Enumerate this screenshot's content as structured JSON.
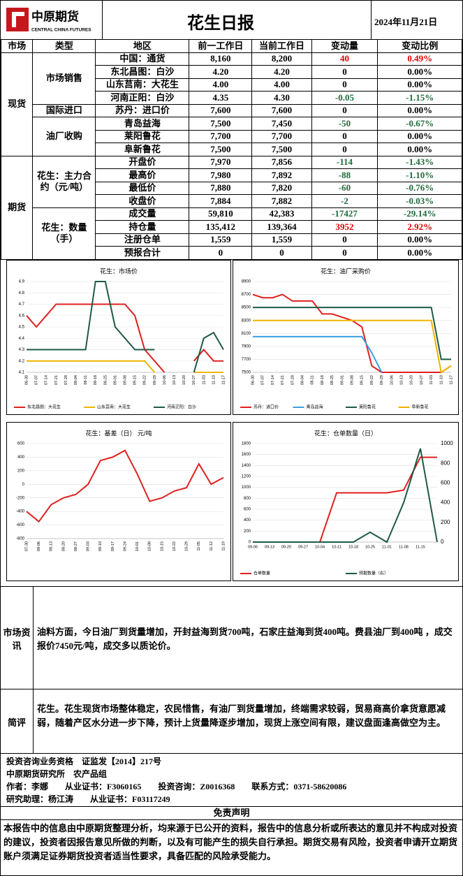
{
  "header": {
    "logo": "中原期货",
    "logo_en": "CENTRAL CHINA FUTURES",
    "title": "花生日报",
    "date": "2024年11月21日"
  },
  "table": {
    "header": [
      "市场",
      "类型",
      "地区",
      "前一工作日",
      "当前工作日",
      "变动量",
      "变动比例"
    ],
    "markets": [
      "现货",
      "期货"
    ],
    "types": [
      "市场销售",
      "国际进口",
      "油厂收购",
      "花生：主力合约（元/吨）",
      "花生：数量（手）"
    ],
    "rows": [
      [
        "中国：通货",
        "8,160",
        "8,200",
        "40",
        "0.49%"
      ],
      [
        "东北昌图：白沙",
        "4.20",
        "4.20",
        "0",
        "0.00%"
      ],
      [
        "山东莒南：大花生",
        "4.00",
        "4.00",
        "0",
        "0.00%"
      ],
      [
        "河南正阳：白沙",
        "4.35",
        "4.30",
        "-0.05",
        "-1.15%"
      ],
      [
        "苏丹：进口价",
        "7,600",
        "7,600",
        "0",
        "0.00%"
      ],
      [
        "青岛益海",
        "7,500",
        "7,450",
        "-50",
        "-0.67%"
      ],
      [
        "莱阳鲁花",
        "7,700",
        "7,700",
        "0",
        "0.00%"
      ],
      [
        "阜新鲁花",
        "7,500",
        "7,500",
        "0",
        "0.00%"
      ],
      [
        "开盘价",
        "7,970",
        "7,856",
        "-114",
        "-1.43%"
      ],
      [
        "最高价",
        "7,980",
        "7,892",
        "-88",
        "-1.10%"
      ],
      [
        "最低价",
        "7,880",
        "7,820",
        "-60",
        "-0.76%"
      ],
      [
        "收盘价",
        "7,884",
        "7,882",
        "-2",
        "-0.03%"
      ],
      [
        "成交量",
        "59,810",
        "42,383",
        "-17427",
        "-29.14%"
      ],
      [
        "持仓量",
        "135,412",
        "139,364",
        "3952",
        "2.92%"
      ],
      [
        "注册仓单",
        "1,559",
        "1,559",
        "0",
        "0.00%"
      ],
      [
        "预报合计",
        "0",
        "0",
        "0",
        "0.00%"
      ]
    ]
  },
  "chart_data": [
    {
      "type": "line",
      "title": "花生：市场价",
      "categories": [
        "06-30",
        "07-07",
        "07-14",
        "07-21",
        "07-28",
        "08-04",
        "08-11",
        "08-18",
        "08-25",
        "09-01",
        "09-08",
        "09-15",
        "09-22",
        "09-29",
        "10-06",
        "10-13",
        "10-20",
        "10-27",
        "11-03",
        "11-10",
        "11-17"
      ],
      "ylim": [
        4.1,
        4.9
      ],
      "yticks": [
        4.1,
        4.2,
        4.3,
        4.4,
        4.5,
        4.6,
        4.7,
        4.8,
        4.9
      ],
      "series": [
        {
          "name": "东北昌图：大花生",
          "color": "#e02020",
          "values": [
            4.6,
            4.5,
            4.6,
            4.7,
            4.7,
            4.7,
            4.7,
            4.7,
            4.7,
            4.7,
            4.7,
            4.6,
            4.3,
            4.2,
            4.1,
            null,
            null,
            4.2,
            4.3,
            4.2,
            4.2
          ]
        },
        {
          "name": "山东莒南：大花生",
          "color": "#f0b400",
          "values": [
            4.2,
            4.2,
            4.2,
            4.2,
            4.2,
            4.2,
            4.2,
            4.2,
            4.2,
            4.2,
            4.2,
            4.2,
            4.2,
            4.1,
            null,
            null,
            null,
            4.1,
            4.1,
            4.1,
            4.1
          ]
        },
        {
          "name": "河南正阳：白沙",
          "color": "#1e5a45",
          "values": [
            4.3,
            4.3,
            4.3,
            4.3,
            4.3,
            4.3,
            4.3,
            4.9,
            4.9,
            4.5,
            4.4,
            4.3,
            4.3,
            4.3,
            null,
            null,
            null,
            4.1,
            4.4,
            4.45,
            4.3
          ]
        }
      ]
    },
    {
      "type": "line",
      "title": "花生：油厂采购价",
      "categories": [
        "06-30",
        "07-07",
        "07-14",
        "07-21",
        "07-28",
        "08-04",
        "08-11",
        "08-18",
        "08-25",
        "09-01",
        "09-08",
        "09-15",
        "09-22",
        "09-29",
        "10-06",
        "10-13",
        "10-20",
        "10-27",
        "11-03",
        "11-10",
        "11-17"
      ],
      "ylim": [
        7500,
        8900
      ],
      "yticks": [
        7500,
        7700,
        7900,
        8100,
        8300,
        8500,
        8700,
        8900
      ],
      "series": [
        {
          "name": "苏丹：进口价",
          "color": "#e02020",
          "values": [
            8700,
            8650,
            8650,
            8700,
            8600,
            8600,
            8600,
            8400,
            8400,
            8350,
            8300,
            8200,
            7600,
            7500,
            7500,
            7500,
            7500,
            7500,
            7500,
            7500,
            7600
          ]
        },
        {
          "name": "青岛益海",
          "color": "#3aa0e0",
          "values": [
            8050,
            8050,
            8050,
            8050,
            8050,
            8050,
            8050,
            8050,
            8050,
            8050,
            8050,
            8050,
            7800,
            7500,
            null,
            null,
            null,
            null,
            null,
            null,
            null
          ]
        },
        {
          "name": "莱阳鲁花",
          "color": "#1e5a45",
          "values": [
            8500,
            8500,
            8500,
            8500,
            8500,
            8500,
            8500,
            8500,
            8500,
            8500,
            8500,
            8500,
            8500,
            8500,
            8500,
            8500,
            8500,
            8500,
            8500,
            7700,
            7700
          ]
        },
        {
          "name": "阜新鲁花",
          "color": "#f0b400",
          "values": [
            8300,
            8300,
            8300,
            8300,
            8300,
            8300,
            8300,
            8300,
            8300,
            8300,
            8300,
            8300,
            8300,
            8300,
            8300,
            8300,
            8300,
            8300,
            8300,
            7500,
            7600
          ]
        }
      ]
    },
    {
      "type": "line",
      "title": "花生：基差（日） 元/吨",
      "categories": [
        "07-30",
        "08-06",
        "08-13",
        "08-20",
        "08-27",
        "09-03",
        "09-10",
        "09-17",
        "09-24",
        "10-01",
        "10-08",
        "10-15",
        "10-22",
        "10-29",
        "11-05",
        "11-12",
        "11-19"
      ],
      "ylim": [
        -800,
        600
      ],
      "yticks": [
        -800,
        -600,
        -400,
        -200,
        0,
        200,
        400,
        600
      ],
      "series": [
        {
          "name": "基差",
          "color": "#e02020",
          "values": [
            -400,
            -550,
            -300,
            -200,
            -150,
            0,
            350,
            400,
            500,
            150,
            -250,
            -200,
            -100,
            -50,
            300,
            0,
            100
          ]
        }
      ]
    },
    {
      "type": "line",
      "title": "花生：仓单数量（日）",
      "categories": [
        "09-06",
        "09-13",
        "09-20",
        "09-27",
        "10-04",
        "10-11",
        "10-18",
        "10-25",
        "11-01",
        "11-08",
        "11-15",
        null
      ],
      "ylim": [
        0,
        1800
      ],
      "yticks": [
        0,
        200,
        400,
        600,
        800,
        1000,
        1200,
        1400,
        1600,
        1800
      ],
      "y2lim": [
        0,
        1000
      ],
      "y2ticks": [
        0,
        200,
        400,
        600,
        800,
        1000
      ],
      "series": [
        {
          "name": "仓单数量",
          "color": "#e02020",
          "values": [
            0,
            0,
            0,
            0,
            0,
            900,
            900,
            900,
            900,
            950,
            1550,
            1550
          ]
        },
        {
          "name": "预报数量（右）",
          "color": "#1e5a45",
          "axis": "y2",
          "values": [
            0,
            0,
            0,
            0,
            0,
            0,
            0,
            100,
            0,
            400,
            950,
            0
          ]
        }
      ]
    }
  ],
  "sections": [
    {
      "label": "市场资讯",
      "text": "油料方面，今日油厂到货量增加，开封益海到货700吨，石家庄益海到货400吨。费县油厂到400吨 ，成交报价7450元/吨，成交多以质论价。"
    },
    {
      "label": "简评",
      "text": "花生。花生现货市场整体稳定，农民惜售，有油厂到货量增加，终端需求较弱，贸易商高价拿货意愿减弱，随着产区水分进一步下降，预计上货量降逐步增加，现货上涨空间有限，建议盘面逢高做空为主。"
    }
  ],
  "footer": {
    "lines": [
      "投资咨询业务资格　证监发【2014】217号",
      "中原期货研究所　农产品组",
      "作者：李娜　　从业证书：F3060165　　投资咨询：Z0016368　　联系方式：0371-58620086",
      "研究助理：杨江涛　　从业证书：F03117249"
    ],
    "disclaimer_title": "免责声明",
    "disclaimer": "本报告中的信息由中原期货整理分析，均来源于已公开的资料，报告中的信息分析或所表达的意见并不构成对投资的建议，投资者因报告意见所做的判断，以及有可能产生的损失自行承担。期货交易有风险，投资者申请开立期货账户须满足证券期货投资者适当性要求，具备匹配的风险承受能力。"
  }
}
